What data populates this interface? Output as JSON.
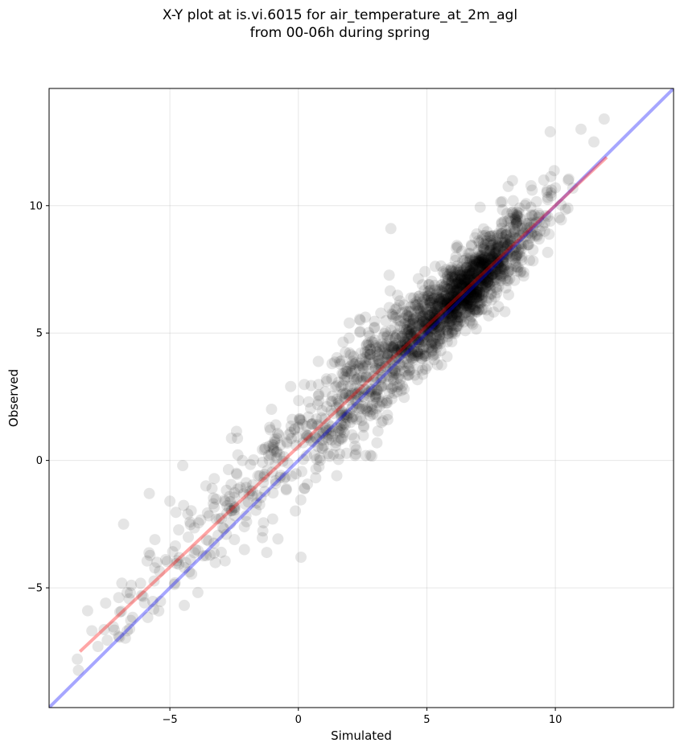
{
  "chart_data": {
    "type": "scatter",
    "title": "X-Y plot at is.vi.6015 for air_temperature_at_2m_agl",
    "subtitle": "from 00-06h during spring",
    "xlabel": "Simulated",
    "ylabel": "Observed",
    "xlim": [
      -9.7,
      14.6
    ],
    "ylim": [
      -9.7,
      14.6
    ],
    "xticks": [
      -5,
      0,
      5,
      10
    ],
    "yticks": [
      -5,
      0,
      5,
      10
    ],
    "xtick_labels": [
      "−5",
      "0",
      "5",
      "10"
    ],
    "ytick_labels": [
      "−5",
      "0",
      "5",
      "10"
    ],
    "grid": true,
    "point_color": "#000000",
    "point_alpha": 0.1,
    "identity_line": {
      "color": "#0000ff",
      "alpha": 0.35,
      "from": [
        -9.7,
        -9.7
      ],
      "to": [
        14.6,
        14.6
      ]
    },
    "fit_line": {
      "color": "#ff0000",
      "alpha": 0.35,
      "from": [
        -8.5,
        -7.5
      ],
      "to": [
        12.0,
        11.9
      ]
    },
    "points_sample": {
      "x": [
        -8.6,
        -8.2,
        -7.8,
        -7.5,
        -7.0,
        -6.8,
        -6.5,
        -6.1,
        -5.8,
        -5.5,
        -5.0,
        -4.8,
        -4.5,
        -4.2,
        -4.0,
        -3.6,
        -3.2,
        -2.8,
        -2.5,
        -2.1,
        -1.8,
        -1.5,
        -1.0,
        -0.7,
        -0.3,
        0.0,
        0.4,
        0.8,
        1.1,
        1.5,
        1.9,
        2.3,
        2.7,
        3.0,
        3.4,
        3.8,
        4.1,
        4.5,
        4.9,
        5.2,
        5.6,
        6.0,
        6.3,
        6.7,
        7.1,
        7.5,
        7.9,
        8.3,
        8.7,
        9.1,
        9.5,
        10.0,
        10.5,
        11.0,
        11.5,
        11.9,
        9.8,
        3.6,
        2.8,
        0.1
      ],
      "y": [
        -7.8,
        -5.9,
        -7.3,
        -5.6,
        -6.9,
        -2.5,
        -4.9,
        -5.3,
        -1.3,
        -4.0,
        -1.6,
        -4.8,
        -0.2,
        -3.9,
        -3.5,
        -1.0,
        -2.3,
        -2.9,
        -1.8,
        -3.5,
        -1.2,
        -0.6,
        -2.3,
        0.6,
        2.9,
        1.3,
        2.3,
        1.1,
        3.1,
        2.4,
        3.6,
        3.2,
        4.3,
        4.5,
        3.7,
        5.6,
        6.1,
        5.0,
        6.1,
        5.3,
        6.9,
        6.3,
        7.4,
        6.6,
        8.0,
        7.4,
        8.9,
        7.9,
        9.1,
        9.6,
        9.2,
        10.7,
        11.0,
        13.0,
        12.5,
        13.4,
        12.9,
        9.1,
        0.2,
        -3.8
      ]
    }
  }
}
